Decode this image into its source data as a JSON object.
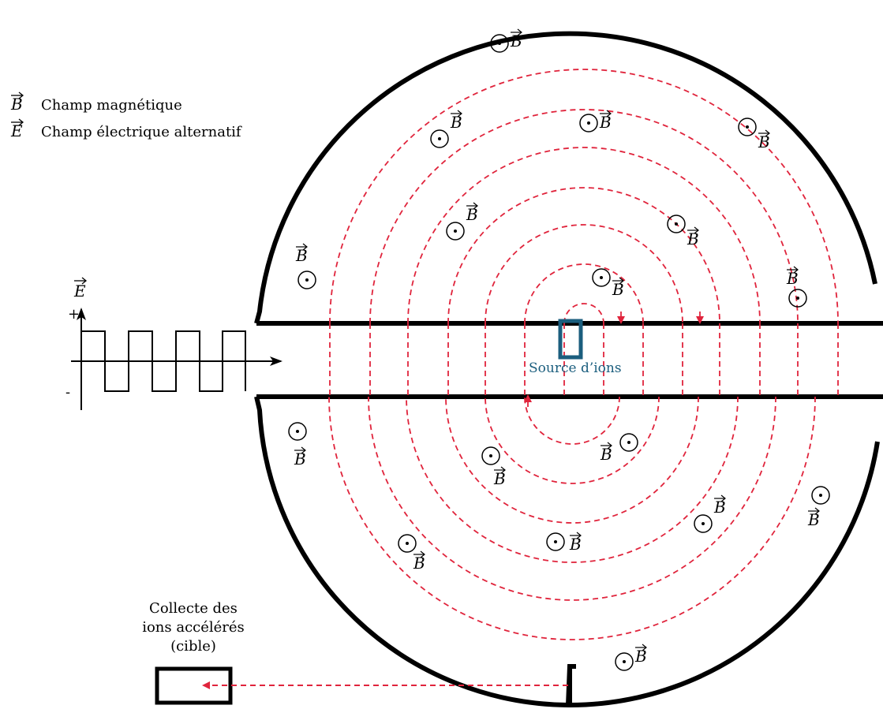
{
  "legend": {
    "b_symbol": "B",
    "b_text": "Champ magnétique",
    "e_symbol": "E",
    "e_text": "Champ électrique alternatif"
  },
  "signal": {
    "axis_label": "E",
    "plus": "+",
    "minus": "-"
  },
  "source_label": "Source d’ions",
  "target_label": [
    "Collecte des",
    "ions accélérés",
    "(cible)"
  ],
  "field_label": "B",
  "colors": {
    "outline": "#000000",
    "trajectory": "#e0243c",
    "source": "#1b5e7e"
  }
}
